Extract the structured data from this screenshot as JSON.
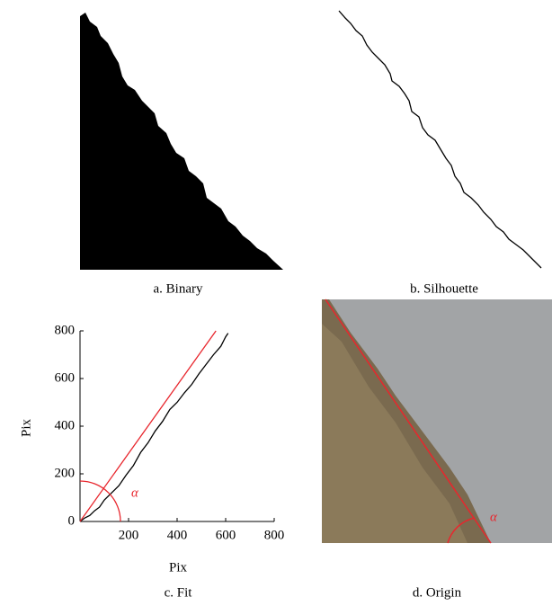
{
  "panels": [
    {
      "caption": "a. Binary"
    },
    {
      "caption": "b. Silhouette"
    },
    {
      "caption": "d. Origin",
      "annotation": "α"
    }
  ],
  "chart_data": {
    "type": "line",
    "caption": "c. Fit",
    "x_label": "Pix",
    "y_label": "Pix",
    "annotation": "α",
    "xlim": [
      0,
      800
    ],
    "ylim": [
      0,
      800
    ],
    "xticks": [
      200,
      400,
      600,
      800
    ],
    "yticks": [
      0,
      200,
      400,
      600,
      800
    ],
    "series": [
      {
        "color": "#000000",
        "x": [
          0,
          20,
          40,
          60,
          80,
          100,
          130,
          160,
          190,
          220,
          250,
          280,
          310,
          340,
          370,
          400,
          430,
          460,
          490,
          520,
          550,
          580,
          600,
          610
        ],
        "values": [
          0,
          15,
          25,
          45,
          60,
          90,
          120,
          150,
          195,
          235,
          290,
          330,
          380,
          420,
          470,
          500,
          540,
          575,
          620,
          660,
          700,
          735,
          775,
          790
        ]
      },
      {
        "color": "#e8262d",
        "x": [
          0,
          560
        ],
        "values": [
          0,
          800
        ]
      }
    ]
  }
}
